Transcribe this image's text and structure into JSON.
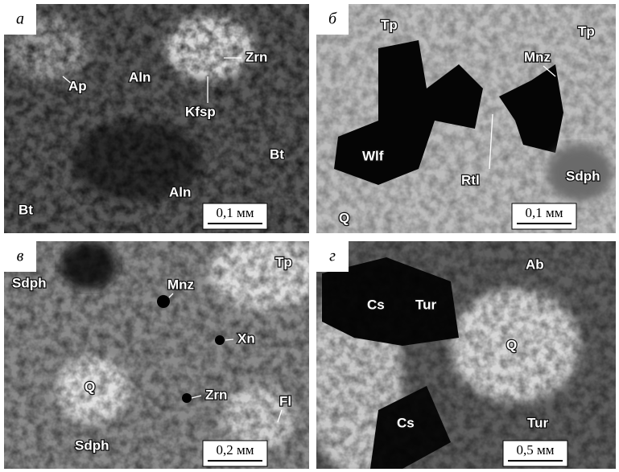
{
  "panels": [
    {
      "letter": "а",
      "labels": [
        "Ap",
        "Aln",
        "Zrn",
        "Kfsp",
        "Bt",
        "Aln",
        "Bt"
      ],
      "scale": "0,1 мм"
    },
    {
      "letter": "б",
      "labels": [
        "Tp",
        "Tp",
        "Mnz",
        "Wlf",
        "Rtl",
        "Sdph",
        "Q"
      ],
      "scale": "0,1 мм"
    },
    {
      "letter": "в",
      "labels": [
        "Tp",
        "Sdph",
        "Mnz",
        "Xn",
        "Q",
        "Zrn",
        "Fl",
        "Sdph"
      ],
      "scale": "0,2 мм"
    },
    {
      "letter": "г",
      "labels": [
        "Ab",
        "Cs",
        "Tur",
        "Q",
        "Cs",
        "Tur"
      ],
      "scale": "0,5 мм"
    }
  ]
}
